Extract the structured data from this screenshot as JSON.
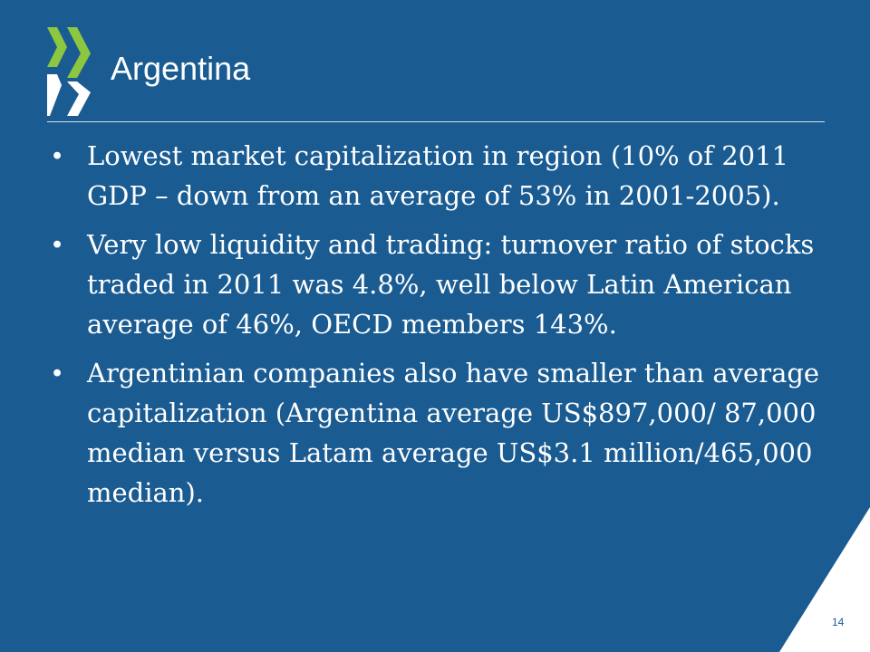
{
  "slide": {
    "title": "Argentina",
    "bullets": [
      "Lowest market capitalization in region (10% of 2011 GDP – down from an average of 53% in 2001-2005).",
      "Very low liquidity and trading: turnover ratio of stocks traded in 2011 was 4.8%, well below Latin American average of 46%, OECD members 143%.",
      "Argentinian companies also have smaller than average capitalization  (Argentina average US$897,000/ 87,000 median versus Latam average US$3.1 million/465,000 median)."
    ],
    "bullet_symbol": "•",
    "page_number": "14"
  },
  "colors": {
    "background": "#1a5c92",
    "logo_green": "#8dc63f",
    "logo_white": "#ffffff",
    "text": "#ffffff"
  },
  "icons": {
    "logo": "oecd-chevron-logo"
  }
}
